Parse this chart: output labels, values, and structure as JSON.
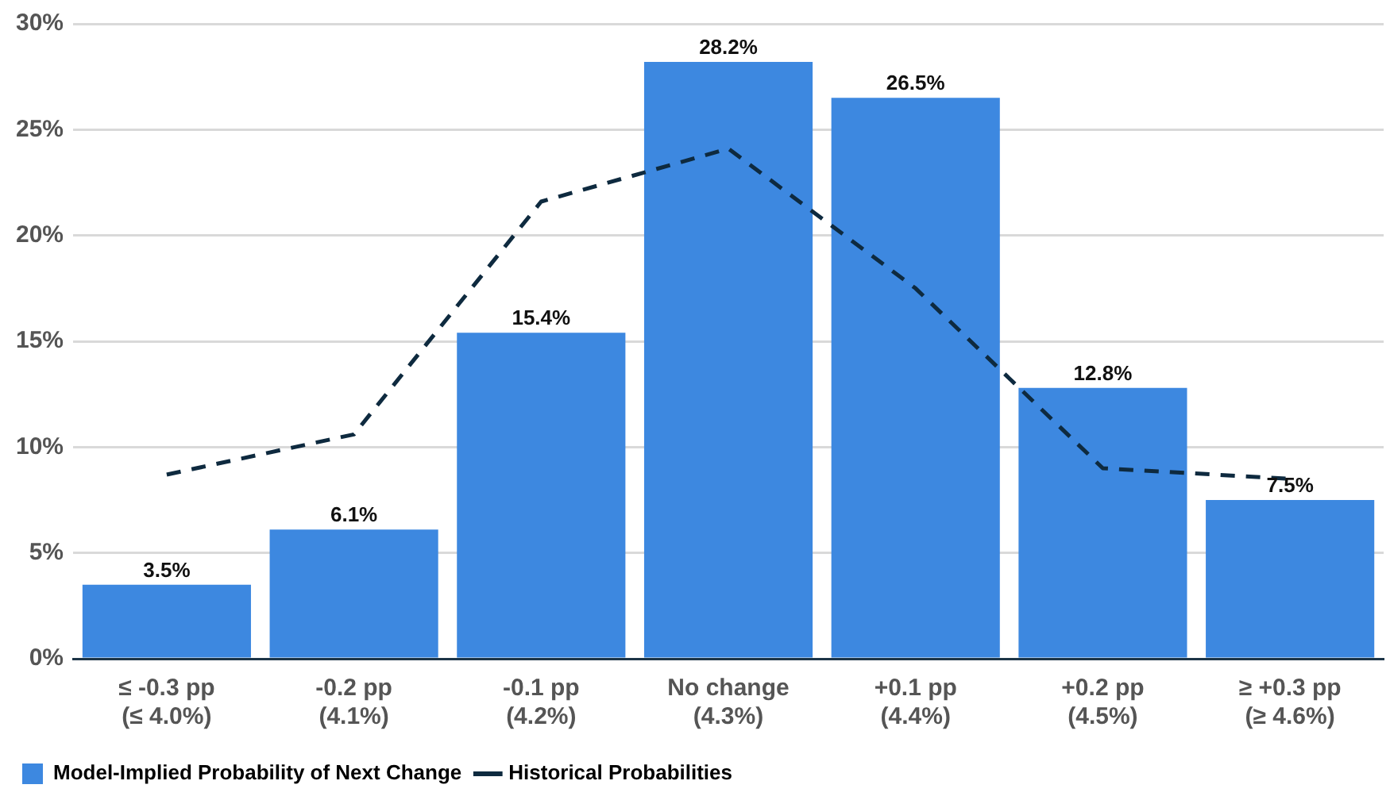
{
  "chart_data": {
    "type": "bar",
    "categories": [
      "≤ -0.3 pp\n(≤ 4.0%)",
      "-0.2 pp\n(4.1%)",
      "-0.1 pp\n(4.2%)",
      "No change\n(4.3%)",
      "+0.1 pp\n(4.4%)",
      "+0.2 pp\n(4.5%)",
      "≥ +0.3 pp\n(≥ 4.6%)"
    ],
    "series": [
      {
        "name": "Model-Implied Probability of Next Change",
        "color": "#3d88e0",
        "values": [
          3.5,
          6.1,
          15.4,
          28.2,
          26.5,
          12.8,
          7.5
        ],
        "value_labels": [
          "3.5%",
          "6.1%",
          "15.4%",
          "28.2%",
          "26.5%",
          "12.8%",
          "7.5%"
        ]
      },
      {
        "name": "Historical Probabilities",
        "type": "line",
        "color": "#0e2a3f",
        "line_style": "dashed",
        "marker": "none",
        "values": [
          8.7,
          10.6,
          21.6,
          24.1,
          17.5,
          9.0,
          8.5
        ]
      }
    ],
    "ylim": [
      0,
      30
    ],
    "yticks": [
      {
        "value": 0,
        "label": "0%"
      },
      {
        "value": 5,
        "label": "5%"
      },
      {
        "value": 10,
        "label": "10%"
      },
      {
        "value": 15,
        "label": "15%"
      },
      {
        "value": 20,
        "label": "20%"
      },
      {
        "value": 25,
        "label": "25%"
      },
      {
        "value": 30,
        "label": "30%"
      }
    ],
    "grid": "y",
    "legend": "bottom left"
  }
}
